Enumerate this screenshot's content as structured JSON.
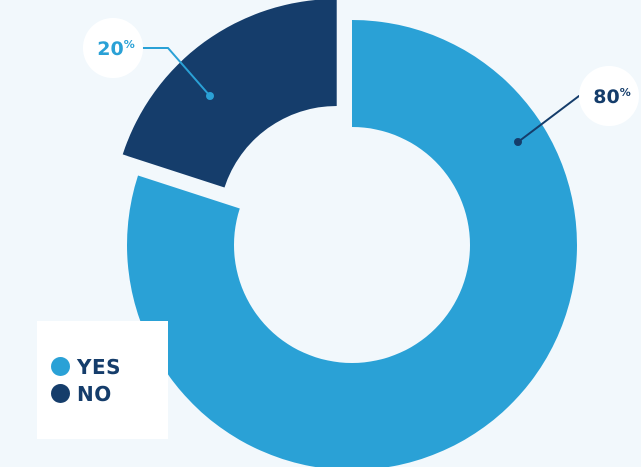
{
  "chart_data": {
    "type": "pie",
    "variant": "donut",
    "categories": [
      "YES",
      "NO"
    ],
    "values": [
      80,
      20
    ],
    "value_suffix": "%",
    "colors": [
      "#2aa1d6",
      "#153d6b"
    ],
    "legend": {
      "position": "bottom-left",
      "entries": [
        "YES",
        "NO"
      ]
    },
    "data_labels": [
      {
        "value": "80",
        "unit": "%",
        "color": "#153d6b"
      },
      {
        "value": "20",
        "unit": "%",
        "color": "#2aa1d6"
      }
    ]
  }
}
